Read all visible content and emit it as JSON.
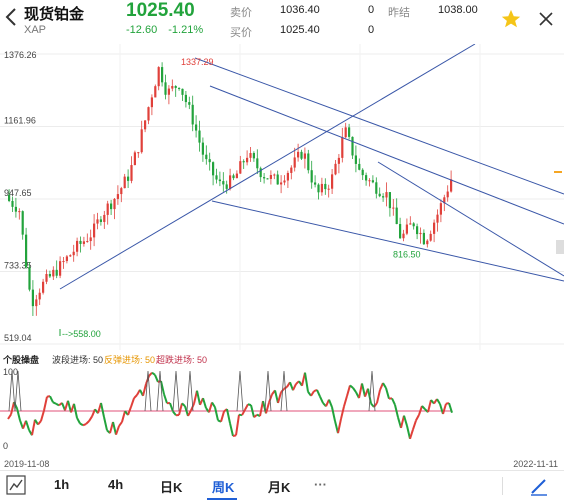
{
  "header": {
    "title": "现货铂金",
    "symbol": "XAP",
    "price": "1025.40",
    "change": "-12.60",
    "change_pct": "-1.21%",
    "sell_label": "卖价",
    "sell_value": "1036.40",
    "sell_qty": "0",
    "buy_label": "买价",
    "buy_value": "1025.40",
    "buy_qty": "0",
    "prev_close_label": "昨结",
    "prev_close_value": "1038.00",
    "colors": {
      "down": "#22a33c",
      "up": "#e0403a",
      "accent": "#1f5fd6",
      "star": "#f5c518"
    }
  },
  "chart_data": {
    "type": "candlestick",
    "y_ticks": [
      "1376.26",
      "1161.96",
      "947.65",
      "733.35",
      "519.04"
    ],
    "ylim": [
      519.04,
      1376.26
    ],
    "annotations": [
      {
        "text": "1337.29",
        "value": 1337.29
      },
      {
        "text": "816.50",
        "value": 816.5
      },
      {
        "text": "-->558.00",
        "value": 558.0
      }
    ],
    "trend_lines": 5,
    "indicator": {
      "name": "个股操盘",
      "items": [
        {
          "label": "波段进场: 50",
          "color": "#333333"
        },
        {
          "label": "反弹进场: 50",
          "color": "#e69500"
        },
        {
          "label": "超跌进场: 50",
          "color": "#c0304a"
        }
      ],
      "y_ticks": [
        "100",
        "0"
      ],
      "ylim": [
        0,
        100
      ],
      "level": 50
    },
    "x_start": "2019-11-08",
    "x_end": "2022-11-11"
  },
  "tabs": [
    {
      "label": "1h",
      "active": false
    },
    {
      "label": "4h",
      "active": false
    },
    {
      "label": "日K",
      "active": false
    },
    {
      "label": "周K",
      "active": true
    },
    {
      "label": "月K",
      "active": false
    }
  ],
  "more_label": "···"
}
